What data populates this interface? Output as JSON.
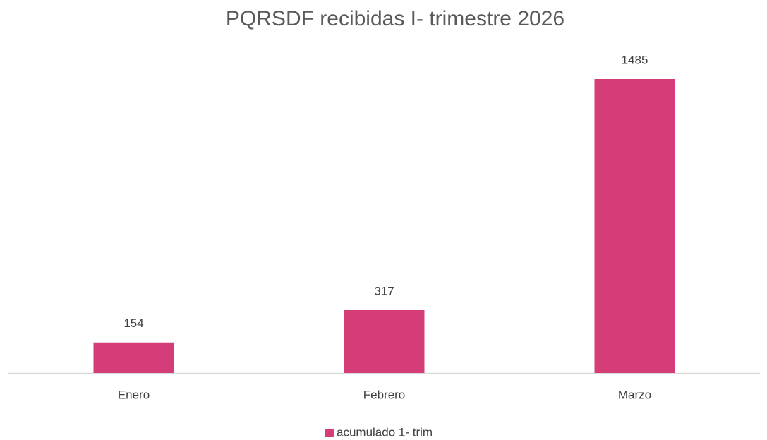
{
  "chart_data": {
    "type": "bar",
    "title": "PQRSDF recibidas I- trimestre 2026",
    "categories": [
      "Enero",
      "Febrero",
      "Marzo"
    ],
    "series": [
      {
        "name": "acumulado 1- trim",
        "color": "#d43d78",
        "values": [
          154,
          317,
          1485
        ]
      }
    ],
    "legend": "bottom"
  }
}
